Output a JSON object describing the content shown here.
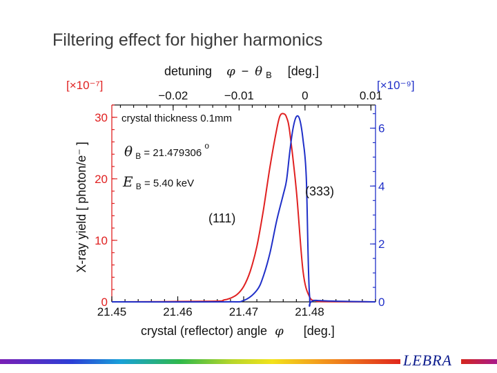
{
  "slide": {
    "title": "Filtering effect for higher harmonics",
    "logo_text": "LEBRA"
  },
  "chart_data": {
    "type": "line",
    "xlabel": "crystal (reflector) angle",
    "xlabel_symbol": "φ",
    "xlabel_unit": "[deg.]",
    "xlim": [
      21.45,
      21.49
    ],
    "xticks": [
      21.45,
      21.46,
      21.47,
      21.48
    ],
    "xtick_labels": [
      "21.45",
      "21.46",
      "21.47",
      "21.48"
    ],
    "top_axis": {
      "label_prefix": "detuning",
      "label_expr_phi": "φ",
      "label_expr_minus": "−",
      "label_expr_theta": "θ",
      "label_expr_sub": "B",
      "label_unit": "[deg.]",
      "ticks": [
        -0.02,
        -0.01,
        0,
        0.01
      ],
      "tick_labels": [
        "−0.02",
        "−0.01",
        "0",
        "0.01"
      ]
    },
    "ylabel_left": "X-ray yield [ photon/e⁻ ]",
    "ylabel_left_multiplier": "[×10⁻⁷]",
    "ylim_left": [
      0,
      32
    ],
    "yticks_left": [
      0,
      10,
      20,
      30
    ],
    "ytick_labels_left": [
      "0",
      "10",
      "20",
      "30"
    ],
    "ylabel_right_multiplier": "[×10⁻⁹]",
    "ylim_right": [
      0,
      6.8
    ],
    "yticks_right": [
      0,
      2,
      4,
      6
    ],
    "ytick_labels_right": [
      "0",
      "2",
      "4",
      "6"
    ],
    "series": [
      {
        "name": "(111)",
        "color": "#e02020",
        "axis": "left",
        "x": [
          21.45,
          21.465,
          21.467,
          21.468,
          21.469,
          21.47,
          21.471,
          21.472,
          21.473,
          21.474,
          21.475,
          21.4755,
          21.476,
          21.4765,
          21.477,
          21.478,
          21.479,
          21.48,
          21.481,
          21.482,
          21.49
        ],
        "values": [
          0,
          0.1,
          0.3,
          0.6,
          1.2,
          2.5,
          5.0,
          9.0,
          15.0,
          22.0,
          28.0,
          30.2,
          30.6,
          30.0,
          27.5,
          18.0,
          5.0,
          0.8,
          0.2,
          0.05,
          0
        ]
      },
      {
        "name": "(333)",
        "color": "#1f2fc8",
        "axis": "right",
        "x": [
          21.45,
          21.467,
          21.47,
          21.472,
          21.473,
          21.474,
          21.475,
          21.476,
          21.4765,
          21.477,
          21.4775,
          21.478,
          21.4785,
          21.479,
          21.4795,
          21.48,
          21.481,
          21.49
        ],
        "values": [
          0,
          0,
          0.05,
          0.4,
          0.9,
          1.7,
          2.8,
          3.7,
          4.2,
          5.2,
          6.0,
          6.4,
          6.3,
          5.6,
          4.3,
          0.2,
          0.05,
          0
        ]
      }
    ],
    "annotations": {
      "thickness": "crystal thickness 0.1mm",
      "theta_symbol": "θ",
      "theta_sub": "B",
      "theta_value": " = 21.479306",
      "theta_degree": "o",
      "energy_symbol": "E",
      "energy_sub": "B",
      "energy_value": " = 5.40 keV",
      "label_111": "(111)",
      "label_333": "(333)"
    },
    "colors": {
      "red_axis": "#e02020",
      "blue_axis": "#1f2fc8",
      "frame": "#111111"
    }
  }
}
